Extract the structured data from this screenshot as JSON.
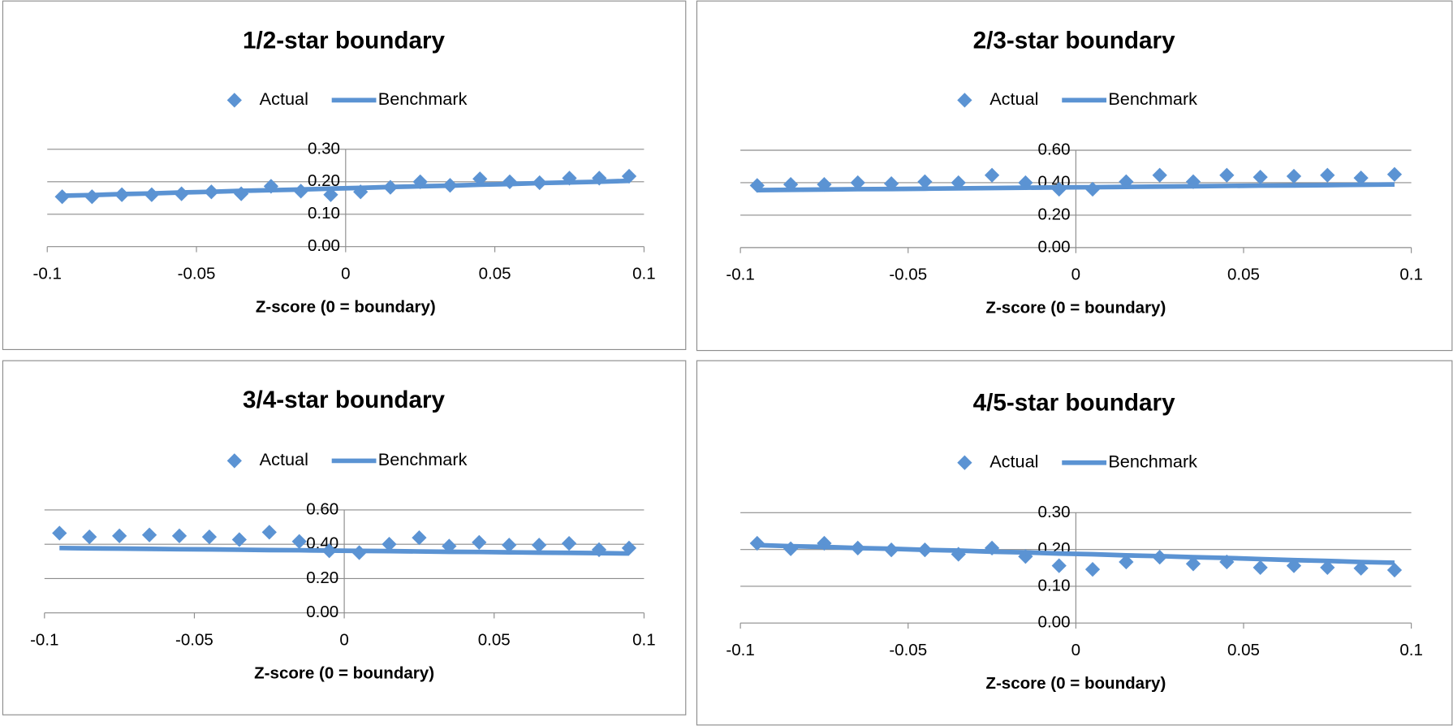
{
  "chart_data": [
    {
      "type": "scatter",
      "title": "1/2-star boundary",
      "x_label": "Z-score (0 = boundary)",
      "x": [
        -0.095,
        -0.085,
        -0.075,
        -0.065,
        -0.055,
        -0.045,
        -0.035,
        -0.025,
        -0.015,
        -0.005,
        0.005,
        0.015,
        0.025,
        0.035,
        0.045,
        0.055,
        0.065,
        0.075,
        0.085,
        0.095
      ],
      "series": [
        {
          "name": "Actual",
          "color": "#5b93d3",
          "style": "markers",
          "values": [
            0.154,
            0.154,
            0.16,
            0.16,
            0.163,
            0.169,
            0.163,
            0.186,
            0.171,
            0.16,
            0.169,
            0.183,
            0.2,
            0.189,
            0.209,
            0.2,
            0.197,
            0.211,
            0.211,
            0.217
          ]
        },
        {
          "name": "Benchmark",
          "color": "#5b93d3",
          "style": "line",
          "values": [
            0.157,
            0.159,
            0.162,
            0.164,
            0.167,
            0.169,
            0.172,
            0.174,
            0.176,
            0.179,
            0.181,
            0.184,
            0.186,
            0.188,
            0.191,
            0.193,
            0.196,
            0.198,
            0.2,
            0.203
          ]
        }
      ],
      "xlim": [
        -0.1,
        0.1
      ],
      "xticks": [
        -0.1,
        -0.05,
        0,
        0.05,
        0.1
      ],
      "ylim": [
        0,
        0.3
      ],
      "yticks": [
        {
          "value": 0,
          "label": "0.00"
        },
        {
          "value": 0.1,
          "label": "0.10"
        },
        {
          "value": 0.2,
          "label": "0.20"
        },
        {
          "value": 0.3,
          "label": "0.30"
        }
      ],
      "grid": true
    },
    {
      "type": "scatter",
      "title": "2/3-star boundary",
      "x_label": "Z-score (0 = boundary)",
      "x": [
        -0.095,
        -0.085,
        -0.075,
        -0.065,
        -0.055,
        -0.045,
        -0.035,
        -0.025,
        -0.015,
        -0.005,
        0.005,
        0.015,
        0.025,
        0.035,
        0.045,
        0.055,
        0.065,
        0.075,
        0.085,
        0.095
      ],
      "series": [
        {
          "name": "Actual",
          "color": "#5b93d3",
          "style": "markers",
          "values": [
            0.383,
            0.389,
            0.389,
            0.4,
            0.394,
            0.406,
            0.4,
            0.446,
            0.4,
            0.36,
            0.36,
            0.406,
            0.446,
            0.406,
            0.446,
            0.434,
            0.44,
            0.446,
            0.429,
            0.451
          ]
        },
        {
          "name": "Benchmark",
          "color": "#5b93d3",
          "style": "line",
          "values": [
            0.354,
            0.356,
            0.358,
            0.36,
            0.361,
            0.363,
            0.365,
            0.367,
            0.369,
            0.371,
            0.372,
            0.374,
            0.376,
            0.378,
            0.38,
            0.382,
            0.383,
            0.385,
            0.387,
            0.389
          ]
        }
      ],
      "xlim": [
        -0.1,
        0.1
      ],
      "xticks": [
        -0.1,
        -0.05,
        0,
        0.05,
        0.1
      ],
      "ylim": [
        0,
        0.6
      ],
      "yticks": [
        {
          "value": 0,
          "label": "0.00"
        },
        {
          "value": 0.2,
          "label": "0.20"
        },
        {
          "value": 0.4,
          "label": "0.40"
        },
        {
          "value": 0.6,
          "label": "0.60"
        }
      ],
      "grid": true
    },
    {
      "type": "scatter",
      "title": "3/4-star boundary",
      "x_label": "Z-score (0 = boundary)",
      "x": [
        -0.095,
        -0.085,
        -0.075,
        -0.065,
        -0.055,
        -0.045,
        -0.035,
        -0.025,
        -0.015,
        -0.005,
        0.005,
        0.015,
        0.025,
        0.035,
        0.045,
        0.055,
        0.065,
        0.075,
        0.085,
        0.095
      ],
      "series": [
        {
          "name": "Actual",
          "color": "#5b93d3",
          "style": "markers",
          "values": [
            0.465,
            0.443,
            0.449,
            0.454,
            0.449,
            0.443,
            0.427,
            0.47,
            0.416,
            0.362,
            0.351,
            0.4,
            0.438,
            0.389,
            0.411,
            0.395,
            0.395,
            0.405,
            0.368,
            0.378
          ]
        },
        {
          "name": "Benchmark",
          "color": "#5b93d3",
          "style": "line",
          "values": [
            0.378,
            0.376,
            0.375,
            0.373,
            0.371,
            0.37,
            0.368,
            0.366,
            0.365,
            0.363,
            0.361,
            0.36,
            0.358,
            0.356,
            0.355,
            0.353,
            0.351,
            0.35,
            0.348,
            0.346
          ]
        }
      ],
      "xlim": [
        -0.1,
        0.1
      ],
      "xticks": [
        -0.1,
        -0.05,
        0,
        0.05,
        0.1
      ],
      "ylim": [
        0,
        0.6
      ],
      "yticks": [
        {
          "value": 0,
          "label": "0.00"
        },
        {
          "value": 0.2,
          "label": "0.20"
        },
        {
          "value": 0.4,
          "label": "0.40"
        },
        {
          "value": 0.6,
          "label": "0.60"
        }
      ],
      "grid": true
    },
    {
      "type": "scatter",
      "title": "4/5-star boundary",
      "x_label": "Z-score (0 = boundary)",
      "x": [
        -0.095,
        -0.085,
        -0.075,
        -0.065,
        -0.055,
        -0.045,
        -0.035,
        -0.025,
        -0.015,
        -0.005,
        0.005,
        0.015,
        0.025,
        0.035,
        0.045,
        0.055,
        0.065,
        0.075,
        0.085,
        0.095
      ],
      "series": [
        {
          "name": "Actual",
          "color": "#5b93d3",
          "style": "markers",
          "values": [
            0.217,
            0.202,
            0.217,
            0.204,
            0.199,
            0.199,
            0.187,
            0.204,
            0.181,
            0.156,
            0.146,
            0.166,
            0.179,
            0.161,
            0.166,
            0.151,
            0.156,
            0.151,
            0.149,
            0.144
          ]
        },
        {
          "name": "Benchmark",
          "color": "#5b93d3",
          "style": "line",
          "values": [
            0.212,
            0.209,
            0.207,
            0.204,
            0.202,
            0.199,
            0.197,
            0.194,
            0.192,
            0.189,
            0.187,
            0.184,
            0.182,
            0.179,
            0.177,
            0.174,
            0.171,
            0.169,
            0.166,
            0.164
          ]
        }
      ],
      "xlim": [
        -0.1,
        0.1
      ],
      "xticks": [
        -0.1,
        -0.05,
        0,
        0.05,
        0.1
      ],
      "ylim": [
        0,
        0.3
      ],
      "yticks": [
        {
          "value": 0,
          "label": "0.00"
        },
        {
          "value": 0.1,
          "label": "0.10"
        },
        {
          "value": 0.2,
          "label": "0.20"
        },
        {
          "value": 0.3,
          "label": "0.30"
        }
      ],
      "grid": true
    }
  ]
}
